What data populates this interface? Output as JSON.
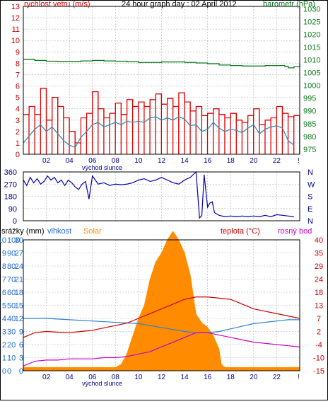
{
  "colors": {
    "wind": "#e00000",
    "gust": "#e00000",
    "avgwind": "#2f8fb0",
    "barometer": "#0a7a1c",
    "direction": "#0000b0",
    "solar": "#ff8c00",
    "humidity": "#2f7fd0",
    "temperature": "#cc0000",
    "dewpoint": "#c800c8",
    "grid": "#b0b0b0",
    "axis_blue": "#1e6bd6",
    "axis_red": "#cc0000",
    "axis_green": "#0a7a1c",
    "axis_navy": "#000090"
  },
  "chart_data": [
    {
      "type": "line",
      "title": "24 hour graph day : 02 April 2012",
      "left_label": "rychlost vetru (m/s)",
      "right_label": "barometr (hPa)",
      "xlabel": "východ slunce",
      "x_ticks": [
        "02",
        "04",
        "06",
        "08",
        "10",
        "12",
        "14",
        "16",
        "18",
        "20",
        "22"
      ],
      "last_tick": "!",
      "y_left": {
        "ticks": [
          0,
          1,
          2,
          3,
          4,
          5,
          6,
          7,
          8,
          9,
          10,
          11,
          12,
          13
        ],
        "range": [
          0,
          13
        ]
      },
      "y_right": {
        "ticks": [
          975,
          980,
          985,
          990,
          995,
          1000,
          1005,
          1010,
          1015,
          1020,
          1025,
          1030
        ],
        "range": [
          973,
          1031
        ]
      },
      "x_range": [
        0,
        24
      ],
      "series": [
        {
          "key": "gust",
          "axis": "left",
          "x": [
            0,
            0.5,
            1.0,
            1.5,
            2.0,
            2.5,
            3.0,
            3.5,
            4.0,
            4.5,
            5.0,
            5.5,
            6.0,
            6.5,
            7.0,
            7.5,
            8.0,
            8.5,
            9.0,
            9.5,
            10.0,
            10.5,
            11.0,
            11.5,
            12.0,
            12.5,
            13.0,
            13.5,
            14.0,
            14.5,
            15.0,
            15.5,
            16.0,
            16.5,
            17.0,
            17.5,
            18.0,
            18.5,
            19.0,
            19.5,
            20.0,
            20.5,
            21.0,
            21.5,
            22.0,
            22.5,
            23.0,
            23.5
          ],
          "values": [
            3.5,
            4.2,
            3.5,
            5.8,
            3.0,
            5.0,
            4.2,
            3.2,
            2.0,
            1.0,
            3.2,
            3.6,
            5.5,
            4.0,
            3.2,
            3.6,
            4.5,
            3.5,
            4.8,
            4.2,
            4.6,
            4.2,
            4.8,
            5.3,
            4.4,
            4.9,
            4.2,
            5.4,
            4.6,
            3.8,
            4.2,
            3.4,
            3.6,
            4.0,
            3.5,
            3.2,
            3.6,
            3.0,
            2.8,
            3.4,
            4.0,
            2.6,
            3.0,
            3.2,
            4.2,
            3.6,
            3.3,
            3.4
          ]
        },
        {
          "key": "avgwind",
          "axis": "left",
          "x": [
            0,
            0.5,
            1.0,
            1.5,
            2.0,
            2.5,
            3.0,
            3.5,
            4.0,
            4.5,
            5.0,
            5.5,
            6.0,
            6.5,
            7.0,
            7.5,
            8.0,
            8.5,
            9.0,
            9.5,
            10.0,
            10.5,
            11.0,
            11.5,
            12.0,
            12.5,
            13.0,
            13.5,
            14.0,
            14.5,
            15.0,
            15.5,
            16.0,
            16.5,
            17.0,
            17.5,
            18.0,
            18.5,
            19.0,
            19.5,
            20.0,
            20.5,
            21.0,
            21.5,
            22.0,
            22.5,
            23.0,
            23.5
          ],
          "values": [
            1.0,
            1.6,
            2.2,
            2.6,
            2.0,
            2.4,
            1.8,
            1.2,
            0.8,
            0.6,
            1.5,
            2.0,
            2.6,
            2.8,
            2.4,
            2.6,
            2.8,
            2.6,
            2.9,
            2.8,
            2.9,
            2.8,
            3.2,
            3.3,
            3.0,
            3.2,
            3.0,
            3.3,
            3.1,
            2.5,
            2.6,
            2.0,
            2.2,
            2.8,
            2.3,
            2.0,
            2.2,
            2.1,
            1.9,
            2.3,
            2.6,
            1.8,
            2.2,
            2.4,
            2.5,
            2.3,
            1.2,
            0.8
          ]
        },
        {
          "key": "barometer",
          "axis": "right",
          "x": [
            0,
            1,
            2,
            3,
            4,
            5,
            6,
            7,
            8,
            9,
            10,
            11,
            12,
            13,
            14,
            15,
            16,
            17,
            18,
            19,
            20,
            21,
            22,
            22.7,
            23.0,
            23.5,
            24.0
          ],
          "values": [
            1010.2,
            1009.8,
            1009.5,
            1009.4,
            1009.4,
            1009.6,
            1009.8,
            1009.6,
            1009.5,
            1009.3,
            1009.0,
            1009.0,
            1009.2,
            1009.2,
            1009.0,
            1008.8,
            1008.5,
            1008.0,
            1007.8,
            1007.6,
            1007.6,
            1007.8,
            1007.8,
            1007.5,
            1006.9,
            1007.3,
            1008.3
          ]
        }
      ]
    },
    {
      "type": "line",
      "right_labels": [
        "N",
        "W",
        "S",
        "E",
        "N"
      ],
      "y_ticks": [
        0,
        90,
        180,
        270,
        360
      ],
      "y_range": [
        0,
        360
      ],
      "x_range": [
        0,
        24
      ],
      "series": [
        {
          "key": "direction",
          "x": [
            0,
            0.3,
            0.6,
            0.9,
            1.2,
            1.5,
            1.8,
            2.1,
            2.4,
            2.7,
            3.0,
            3.3,
            3.6,
            3.9,
            4.2,
            4.5,
            4.8,
            5.1,
            5.4,
            5.7,
            6.0,
            6.5,
            7.0,
            7.5,
            8.0,
            8.5,
            9.0,
            9.5,
            10.0,
            10.5,
            11.0,
            11.5,
            12.0,
            12.5,
            13.0,
            13.5,
            14.0,
            14.5,
            15.0,
            15.3,
            15.5,
            15.7,
            16.0,
            16.2,
            16.4,
            16.6,
            17.0,
            17.5,
            18.0,
            18.5,
            19.0,
            19.5,
            20.0,
            20.5,
            21.0,
            21.5,
            22.0,
            22.5,
            23.0,
            23.5
          ],
          "values": [
            300,
            260,
            320,
            280,
            310,
            270,
            290,
            330,
            300,
            320,
            280,
            300,
            260,
            300,
            280,
            250,
            230,
            270,
            290,
            160,
            330,
            270,
            280,
            260,
            270,
            265,
            270,
            280,
            300,
            310,
            290,
            300,
            320,
            300,
            280,
            270,
            300,
            320,
            360,
            20,
            40,
            340,
            100,
            130,
            140,
            60,
            40,
            30,
            35,
            30,
            35,
            30,
            35,
            30,
            40,
            30,
            45,
            40,
            35,
            30
          ]
        }
      ]
    },
    {
      "type": "line",
      "labels": {
        "rain": "srážky (mm)",
        "humidity": "vlhkost",
        "solar": "Solar",
        "temperature": "teplota (°C)",
        "dewpoint": "rosný bod"
      },
      "xlabel": "východ slunce",
      "x_ticks": [
        "02",
        "04",
        "06",
        "08",
        "10",
        "12",
        "14",
        "16",
        "18",
        "20",
        "22"
      ],
      "last_tick": "!",
      "y_rain": {
        "ticks": [
          0,
          1,
          2,
          3,
          4,
          5,
          6,
          7,
          8,
          9,
          10
        ],
        "range": [
          0,
          10
        ]
      },
      "y_humidity": {
        "ticks": [
          0,
          10,
          20,
          30,
          40,
          50,
          60,
          70,
          80,
          90,
          100
        ],
        "range": [
          0,
          100
        ]
      },
      "y_solar": {
        "ticks": [
          0,
          3,
          6,
          9,
          12,
          15,
          18,
          21,
          24,
          27,
          30
        ],
        "range": [
          0,
          30
        ]
      },
      "y_temperature": {
        "ticks": [
          -15,
          -10,
          -4,
          2,
          7,
          13,
          18,
          24,
          29,
          35,
          40
        ],
        "range": [
          -15,
          40
        ]
      },
      "x_range": [
        0,
        24
      ],
      "series": [
        {
          "key": "solar",
          "axis": "solar",
          "x": [
            0,
            1,
            2,
            3,
            4,
            5,
            6,
            7,
            8,
            8.5,
            9,
            9.5,
            10,
            10.5,
            11,
            11.5,
            12,
            12.5,
            13,
            13.5,
            14,
            14.5,
            15,
            15.5,
            16,
            16.5,
            17,
            17.2,
            17.5,
            18,
            19,
            20,
            21,
            22,
            23,
            24
          ],
          "values": [
            0.8,
            0.8,
            0.8,
            0.8,
            0.8,
            0.8,
            0.8,
            0.8,
            0.8,
            1.5,
            4,
            8,
            12,
            15,
            21,
            25,
            27,
            30,
            32,
            30,
            27,
            22,
            13,
            11,
            10,
            8,
            5,
            1.5,
            0.8,
            0.8,
            0.8,
            0.8,
            0.8,
            0.8,
            0.8,
            0.8
          ]
        },
        {
          "key": "humidity",
          "axis": "humidity",
          "x": [
            0,
            2,
            4,
            6,
            8,
            10,
            12,
            14,
            15,
            16,
            17,
            18,
            19,
            20,
            21,
            22,
            23,
            24
          ],
          "values": [
            40,
            40,
            39,
            38,
            37,
            36,
            33,
            30,
            29,
            29,
            30,
            32,
            34,
            36,
            37,
            38,
            39,
            39
          ]
        },
        {
          "key": "temperature",
          "axis": "temperature",
          "x": [
            0,
            1,
            2,
            3,
            4,
            5,
            6,
            7,
            8,
            9,
            10,
            11,
            12,
            13,
            14,
            15,
            16,
            17,
            18,
            19,
            20,
            21,
            22,
            23,
            24
          ],
          "values": [
            -1,
            1,
            1.5,
            1.2,
            1.0,
            1.5,
            2,
            3,
            4,
            5,
            7,
            9,
            11,
            13,
            15,
            16,
            16,
            15.5,
            15,
            13,
            11,
            10,
            9,
            8,
            7
          ]
        },
        {
          "key": "dewpoint",
          "axis": "temperature",
          "x": [
            0,
            1,
            2,
            3,
            4,
            5,
            6,
            7,
            8,
            9,
            10,
            11,
            12,
            13,
            14,
            15,
            16,
            17,
            18,
            19,
            20,
            21,
            22,
            23,
            24
          ],
          "values": [
            -13,
            -11,
            -10.5,
            -10.5,
            -10,
            -10,
            -10,
            -9.5,
            -9.5,
            -9,
            -8,
            -7,
            -5,
            -3,
            -1,
            1,
            1,
            0,
            -1,
            -2,
            -3,
            -3.5,
            -4,
            -4.5,
            -5
          ]
        }
      ]
    }
  ]
}
